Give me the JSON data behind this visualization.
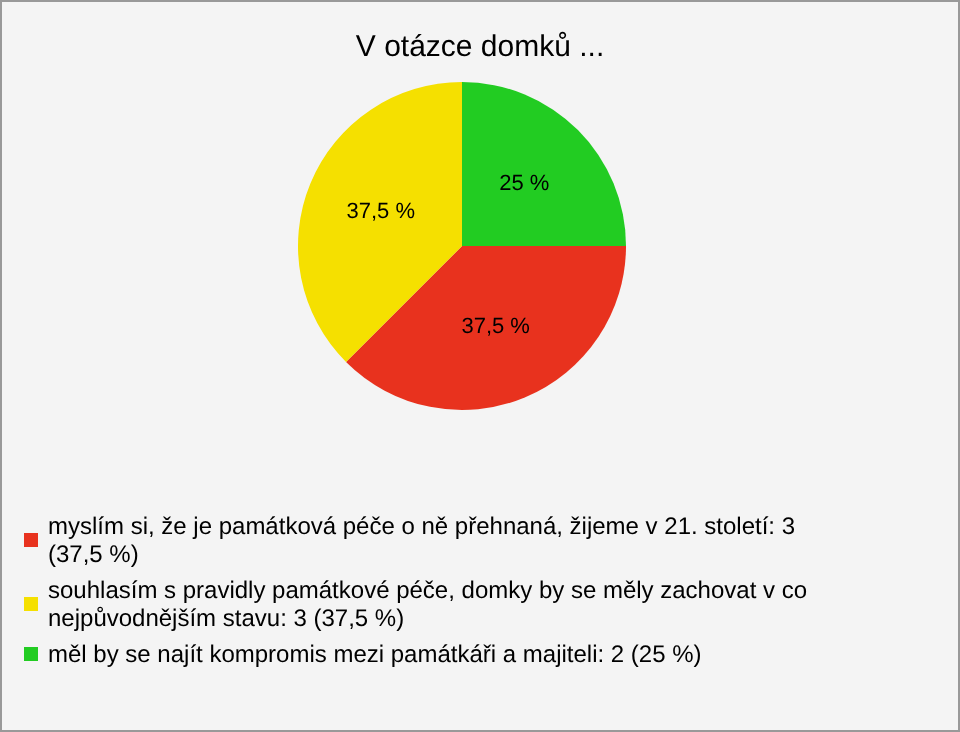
{
  "chart_data": {
    "type": "pie",
    "title": "V otázce domků ...",
    "categories": [
      "myslím si, že je památková péče o ně přehnaná, žijeme v 21. století: 3 (37,5 %)",
      "souhlasím s pravidly památkové péče, domky by se měly zachovat v co nejpůvodnějším stavu: 3 (37,5 %)",
      "měl by se najít kompromis mezi památkáři a majiteli: 2 (25 %)"
    ],
    "values": [
      37.5,
      37.5,
      25
    ],
    "colors": [
      "#e8321e",
      "#f5e000",
      "#22cc22"
    ],
    "value_labels": [
      "37,5 %",
      "37,5 %",
      "25 %"
    ],
    "legend": "bottom"
  }
}
